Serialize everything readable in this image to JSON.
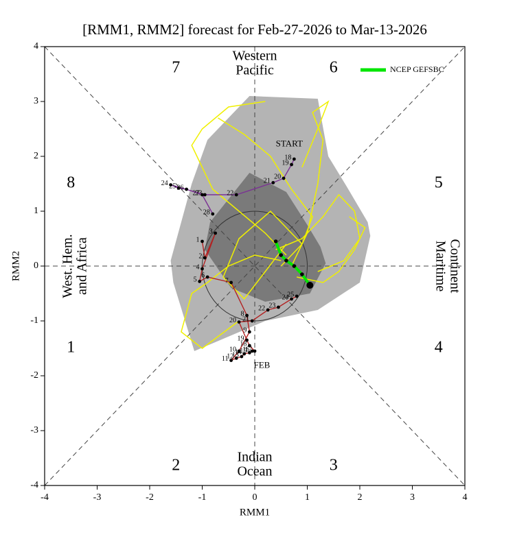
{
  "chart_data": {
    "type": "phase",
    "title": "[RMM1, RMM2] forecast for Feb-27-2026 to Mar-13-2026",
    "xlabel": "RMM1",
    "ylabel": "RMM2",
    "xlim": [
      -4,
      4
    ],
    "ylim": [
      -4,
      4
    ],
    "xticks": [
      -4,
      -3,
      -2,
      -1,
      0,
      1,
      2,
      3,
      4
    ],
    "yticks": [
      -4,
      -3,
      -2,
      -1,
      0,
      1,
      2,
      3,
      4
    ],
    "phases": [
      "1",
      "2",
      "3",
      "4",
      "5",
      "6",
      "7",
      "8"
    ],
    "regions": [
      {
        "lines": [
          "Western",
          "Pacific"
        ]
      },
      {
        "lines": [
          "Maritime",
          "Continent"
        ]
      },
      {
        "lines": [
          "Indian",
          "Ocean"
        ]
      },
      {
        "lines": [
          "West. Hem.",
          "and Africa"
        ]
      }
    ],
    "circle_radius": 1,
    "spread": [
      {
        "color": "#b4b4b4",
        "x": [
          -0.9,
          -0.1,
          1.2,
          1.4,
          1.75,
          2.15,
          2.2,
          2.0,
          1.2,
          0.2,
          -1.15,
          -1.55,
          -1.6,
          -1.2
        ],
        "y": [
          2.3,
          3.1,
          3.05,
          2.0,
          1.45,
          0.8,
          0.55,
          -0.3,
          -0.8,
          -1.0,
          -1.55,
          -0.3,
          0.1,
          1.5
        ]
      },
      {
        "color": "#7a7a7a",
        "x": [
          -0.6,
          -0.1,
          0.6,
          1.0,
          1.25,
          1.35,
          1.05,
          0.2,
          -0.45,
          -0.95,
          -0.85
        ],
        "y": [
          1.1,
          1.7,
          1.35,
          0.75,
          0.35,
          0.05,
          -0.5,
          -0.65,
          -0.4,
          0.3,
          0.8
        ]
      }
    ],
    "members": {
      "color": "#f0f000",
      "lines": [
        {
          "x": [
            0.4,
            0.9,
            1.3,
            1.6,
            1.9,
            2.0,
            1.7,
            1.2
          ],
          "y": [
            0.3,
            0.5,
            0.9,
            1.3,
            1.0,
            0.5,
            0.1,
            -0.1
          ]
        },
        {
          "x": [
            0.6,
            0.2,
            -0.3,
            -0.8,
            -1.2,
            -1.0,
            -0.5,
            0.2
          ],
          "y": [
            0.2,
            0.6,
            1.0,
            1.4,
            2.2,
            2.5,
            2.9,
            3.0
          ]
        },
        {
          "x": [
            0.7,
            1.0,
            1.2,
            1.3,
            1.1,
            1.4,
            1.2,
            0.9
          ],
          "y": [
            0.0,
            0.6,
            1.5,
            2.3,
            2.8,
            3.0,
            2.5,
            1.8
          ]
        },
        {
          "x": [
            0.5,
            0.0,
            -0.5,
            -0.9,
            -1.2,
            -1.4,
            -1.0,
            -0.3
          ],
          "y": [
            0.1,
            0.2,
            0.0,
            -0.3,
            -0.5,
            -1.2,
            -1.5,
            -1.0
          ]
        },
        {
          "x": [
            0.8,
            1.3,
            1.6,
            1.9,
            2.1,
            1.8
          ],
          "y": [
            -0.2,
            -0.3,
            -0.1,
            0.3,
            0.7,
            0.9
          ]
        },
        {
          "x": [
            0.6,
            0.2,
            -0.2,
            -0.6,
            -0.3,
            0.3,
            0.9
          ],
          "y": [
            0.4,
            -0.1,
            -0.6,
            -0.2,
            0.5,
            1.0,
            0.4
          ]
        },
        {
          "x": [
            0.5,
            0.9,
            1.1,
            0.7,
            0.3,
            -0.2,
            -0.7
          ],
          "y": [
            0.0,
            0.4,
            0.9,
            1.4,
            2.0,
            2.4,
            2.7
          ]
        }
      ]
    },
    "observed": [
      {
        "color": "#b22222",
        "x": [
          -1.0,
          -0.95,
          -0.75,
          -1.0,
          -1.05,
          -0.9,
          -0.45,
          -0.15,
          -0.1,
          -0.3,
          -0.45,
          -0.35,
          -0.25,
          -0.2,
          -0.1,
          -0.05,
          0.0,
          -0.1,
          -0.15,
          -0.3,
          -0.05,
          0.25,
          0.45,
          0.7,
          0.8
        ],
        "y": [
          0.45,
          0.15,
          0.6,
          -0.05,
          -0.28,
          -0.2,
          -0.3,
          -0.9,
          -1.2,
          -1.55,
          -1.72,
          -1.68,
          -1.65,
          -1.6,
          -1.58,
          -1.55,
          -1.55,
          -1.45,
          -1.35,
          -1.02,
          -1.0,
          -0.8,
          -0.75,
          -0.6,
          -0.55
        ],
        "labels": [
          "1",
          "2",
          "3",
          "4",
          "5",
          "6",
          "7",
          "8",
          "9",
          "10",
          "11",
          "12",
          "13",
          "14",
          "15",
          "16",
          "17",
          "18",
          "19",
          "20",
          "21",
          "22",
          "23",
          "24",
          "25"
        ]
      },
      {
        "color": "#7b3294",
        "x": [
          -0.8,
          -1.0,
          -1.3,
          -1.45,
          -1.6,
          -0.95,
          -0.35,
          0.35,
          0.55,
          0.7,
          0.75
        ],
        "y": [
          0.95,
          1.3,
          1.4,
          1.42,
          1.48,
          1.3,
          1.3,
          1.52,
          1.6,
          1.85,
          1.95
        ],
        "labels": [
          "28",
          "27",
          "26",
          "25",
          "24",
          "23",
          "22",
          "21",
          "20",
          "19",
          "18"
        ]
      }
    ],
    "series": [
      {
        "name": "NCEP GEFSBC",
        "color": "#00e600",
        "x": [
          0.4,
          0.5,
          0.6,
          0.75,
          0.9,
          1.05
        ],
        "y": [
          0.45,
          0.2,
          0.1,
          0.0,
          -0.15,
          -0.35
        ]
      }
    ],
    "annotations": [
      {
        "text": "FEB",
        "color": "#b22222"
      },
      {
        "text": "START",
        "color": "#7b3294"
      }
    ]
  }
}
